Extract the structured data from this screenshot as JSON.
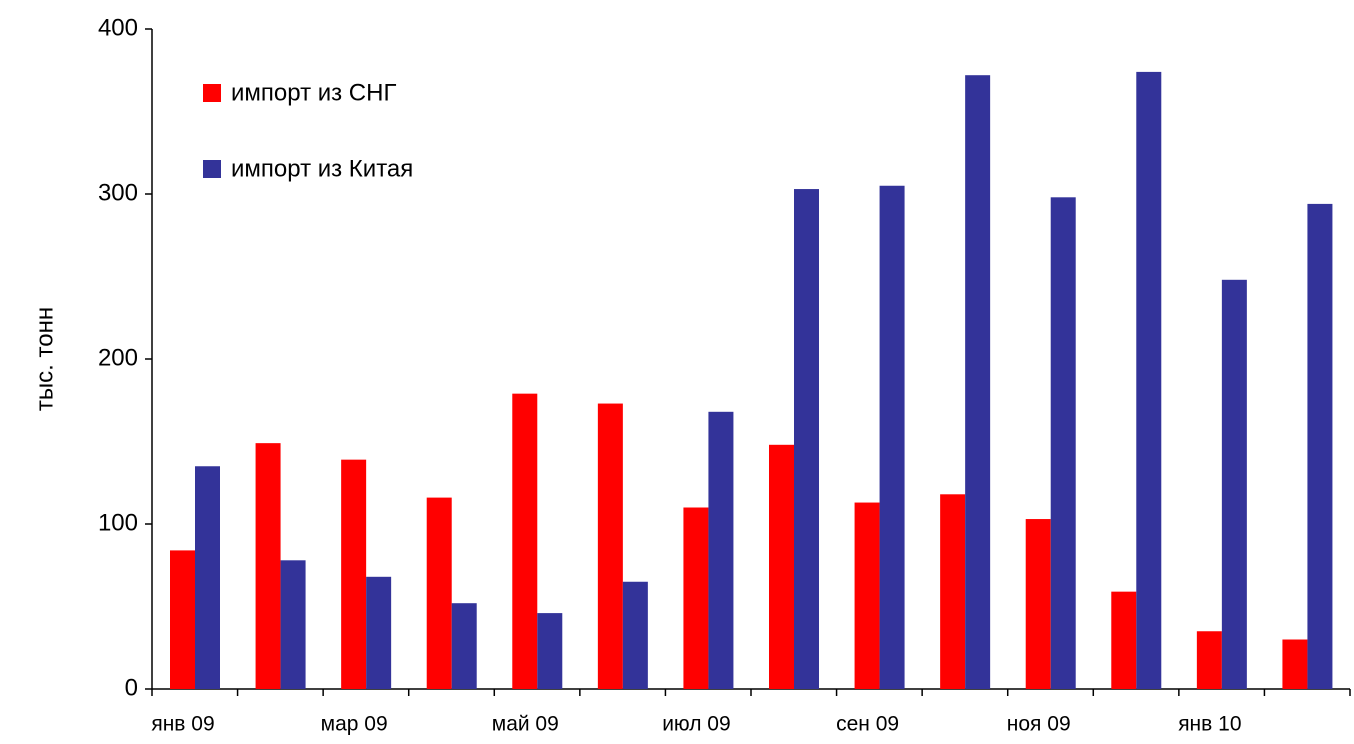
{
  "chart_data": {
    "type": "bar",
    "y_label": "тыс. тонн",
    "categories": [
      "янв 09",
      null,
      "мар 09",
      null,
      "май 09",
      null,
      "июл 09",
      null,
      "сен 09",
      null,
      "ноя 09",
      null,
      "янв 10",
      null
    ],
    "series": [
      {
        "name": "импорт из СНГ",
        "color": "#ff0000",
        "values": [
          84,
          149,
          139,
          116,
          179,
          173,
          110,
          148,
          113,
          118,
          103,
          59,
          35,
          30
        ]
      },
      {
        "name": "импорт из Китая",
        "color": "#333399",
        "values": [
          135,
          78,
          68,
          52,
          46,
          65,
          168,
          303,
          305,
          372,
          298,
          374,
          248,
          294
        ]
      }
    ],
    "ylim": [
      0,
      400
    ],
    "yticks": [
      0,
      100,
      200,
      300,
      400
    ],
    "legend": "upper left"
  }
}
